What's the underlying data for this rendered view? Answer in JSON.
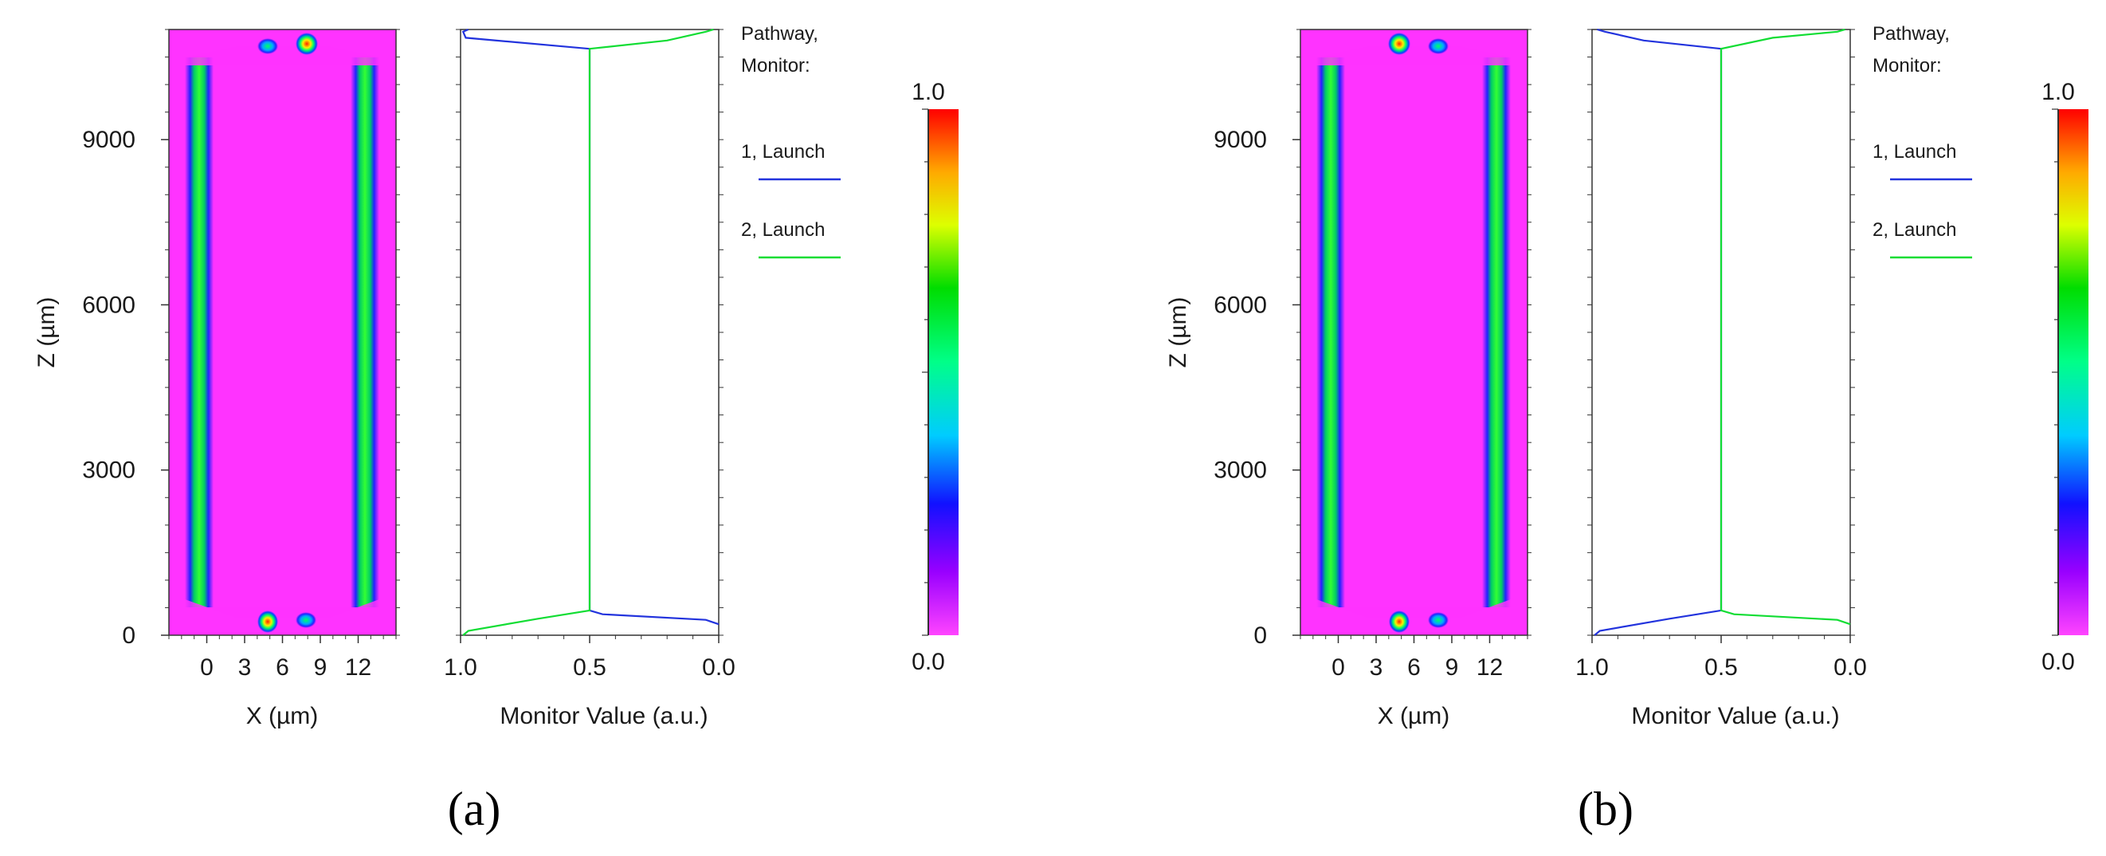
{
  "chart_data": [
    {
      "type": "heatmap",
      "label": "(a)",
      "ylabel": "Z (µm)",
      "xlabel": "X (µm)",
      "yticks": [
        "0",
        "3000",
        "6000",
        "9000"
      ],
      "xticks": [
        "0",
        "3",
        "6",
        "9",
        "12"
      ],
      "xlim": [
        -3,
        15
      ],
      "ylim": [
        0,
        11000
      ],
      "colormap_mirrored": false
    },
    {
      "type": "line",
      "label": "(a)",
      "xlabel": "Monitor Value (a.u.)",
      "xticks": [
        "1.0",
        "0.5",
        "0.0"
      ],
      "xlim": [
        1.0,
        0.0
      ],
      "ylim": [
        0,
        11000
      ],
      "legend_title_lines": [
        "Pathway,",
        "Monitor:"
      ],
      "series": [
        {
          "name": "1, Launch",
          "color": "#2233dd",
          "x": [
            0.0,
            0.05,
            0.45,
            0.5,
            0.5,
            0.5,
            0.98,
            0.99,
            0.97
          ],
          "y": [
            200,
            280,
            380,
            450,
            5500,
            10650,
            10850,
            10960,
            11000
          ]
        },
        {
          "name": "2, Launch",
          "color": "#11dd33",
          "x": [
            0.99,
            0.97,
            0.7,
            0.5,
            0.5,
            0.5,
            0.2,
            0.05,
            0.02
          ],
          "y": [
            0,
            80,
            300,
            450,
            5500,
            10650,
            10800,
            10960,
            11000
          ]
        }
      ]
    },
    {
      "type": "heatmap",
      "label": "(b)",
      "ylabel": "Z (µm)",
      "xlabel": "X (µm)",
      "yticks": [
        "0",
        "3000",
        "6000",
        "9000"
      ],
      "xticks": [
        "0",
        "3",
        "6",
        "9",
        "12"
      ],
      "xlim": [
        -3,
        15
      ],
      "ylim": [
        0,
        11000
      ],
      "colormap_mirrored": true
    },
    {
      "type": "line",
      "label": "(b)",
      "xlabel": "Monitor Value (a.u.)",
      "xticks": [
        "1.0",
        "0.5",
        "0.0"
      ],
      "xlim": [
        1.0,
        0.0
      ],
      "ylim": [
        0,
        11000
      ],
      "legend_title_lines": [
        "Pathway,",
        "Monitor:"
      ],
      "series": [
        {
          "name": "1, Launch",
          "color": "#2233dd",
          "x": [
            0.99,
            0.97,
            0.7,
            0.5,
            0.5,
            0.5,
            0.8,
            0.95,
            0.98
          ],
          "y": [
            0,
            80,
            300,
            450,
            5500,
            10650,
            10800,
            10960,
            11000
          ]
        },
        {
          "name": "2, Launch",
          "color": "#11dd33",
          "x": [
            0.0,
            0.05,
            0.45,
            0.5,
            0.5,
            0.5,
            0.3,
            0.05,
            0.02
          ],
          "y": [
            200,
            280,
            380,
            450,
            5500,
            10650,
            10850,
            10960,
            11000
          ]
        }
      ]
    }
  ],
  "colorbars": [
    {
      "top_label": "1.0",
      "bottom_label": "0.0"
    },
    {
      "top_label": "1.0",
      "bottom_label": "0.0"
    }
  ],
  "captions": [
    "(a)",
    "(b)"
  ]
}
